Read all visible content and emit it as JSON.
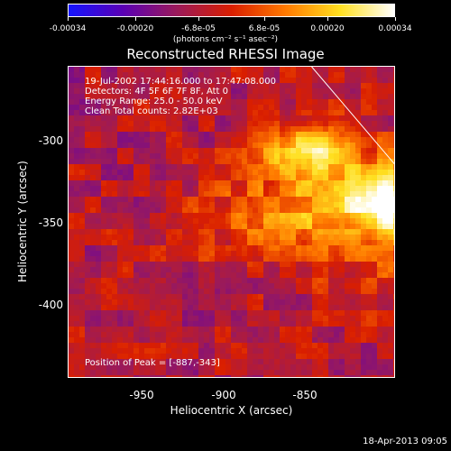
{
  "colorbar": {
    "ticks": [
      "-0.00034",
      "-0.00020",
      "-6.8e-05",
      "6.8e-05",
      "0.00020",
      "0.00034"
    ],
    "units": "(photons cm⁻² s⁻¹ asec⁻²)",
    "colors": [
      "#1414ff",
      "#5a00b4",
      "#9b1a5a",
      "#d91e00",
      "#ff7a00",
      "#ffe020",
      "#ffffff"
    ]
  },
  "title": "Reconstructed RHESSI Image",
  "annotations": [
    "19-Jul-2002 17:44:16.000 to 17:47:08.000",
    "Detectors: 4F 5F 6F 7F 8F, Att 0",
    "Energy Range: 25.0 - 50.0 keV",
    "Clean    Total counts: 2.82E+03"
  ],
  "peak_text": "Position of Peak = [-887,-343]",
  "axes": {
    "xlabel": "Heliocentric X (arcsec)",
    "ylabel": "Heliocentric Y (arcsec)",
    "xticks": [
      "-950",
      "-900",
      "-850"
    ],
    "yticks": [
      "-300",
      "-350",
      "-400"
    ]
  },
  "timestamp": "18-Apr-2013 09:05",
  "chart_data": {
    "type": "heatmap",
    "title": "Reconstructed RHESSI Image",
    "xlabel": "Heliocentric X (arcsec)",
    "ylabel": "Heliocentric Y (arcsec)",
    "xlim": [
      -995,
      -894
    ],
    "ylim": [
      -447,
      -255
    ],
    "zlim": [
      -0.00034,
      0.00034
    ],
    "peak": {
      "x": -887,
      "y": -343
    },
    "limb_line": [
      {
        "x": -920,
        "y": -255
      },
      {
        "x": -838,
        "y": -447
      }
    ],
    "sources": [
      {
        "x": -888,
        "y": -342,
        "amplitude": 0.00034,
        "sigma": 13
      },
      {
        "x": -921,
        "y": -304,
        "amplitude": 0.00029,
        "sigma": 10
      },
      {
        "x": -905,
        "y": -330,
        "amplitude": 0.00018,
        "sigma": 22
      },
      {
        "x": -935,
        "y": -350,
        "amplitude": 0.00012,
        "sigma": 18
      },
      {
        "x": -890,
        "y": -380,
        "amplitude": 0.0001,
        "sigma": 20
      }
    ]
  }
}
